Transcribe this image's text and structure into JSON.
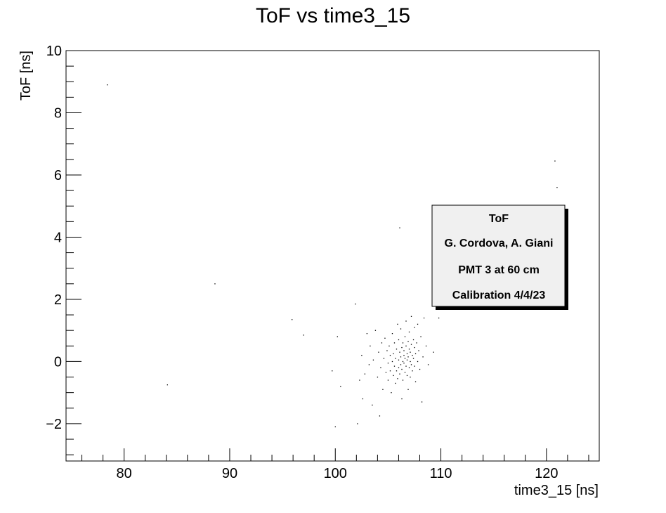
{
  "chart_data": {
    "type": "scatter",
    "title": "ToF vs time3_15",
    "xlabel": "time3_15 [ns]",
    "ylabel": "ToF [ns]",
    "xlim": [
      74.5,
      125
    ],
    "ylim": [
      -3.2,
      10
    ],
    "x_ticks": [
      80,
      90,
      100,
      110,
      120
    ],
    "y_ticks": [
      -2,
      0,
      2,
      4,
      6,
      8,
      10
    ],
    "x_tick_labels": [
      "80",
      "90",
      "100",
      "110",
      "120"
    ],
    "y_tick_labels": [
      "−2",
      "0",
      "2",
      "4",
      "6",
      "8",
      "10"
    ],
    "grid": false,
    "legend_position": "right",
    "legend": {
      "lines": [
        "ToF",
        "G. Cordova, A. Giani",
        "PMT 3 at 60 cm",
        "Calibration 4/4/23"
      ]
    },
    "marker_color": "#000000",
    "points": [
      [
        78.4,
        8.9
      ],
      [
        84.1,
        -0.75
      ],
      [
        88.6,
        2.5
      ],
      [
        95.9,
        1.35
      ],
      [
        97.0,
        0.85
      ],
      [
        99.7,
        -0.3
      ],
      [
        100.0,
        -2.1
      ],
      [
        100.2,
        0.8
      ],
      [
        100.5,
        -0.8
      ],
      [
        101.9,
        1.85
      ],
      [
        102.1,
        -2.0
      ],
      [
        102.3,
        -0.6
      ],
      [
        102.5,
        0.2
      ],
      [
        102.6,
        -1.2
      ],
      [
        102.8,
        -0.4
      ],
      [
        103.0,
        0.9
      ],
      [
        103.2,
        -0.1
      ],
      [
        103.3,
        0.5
      ],
      [
        103.5,
        -1.4
      ],
      [
        103.6,
        0.05
      ],
      [
        103.8,
        1.0
      ],
      [
        104.0,
        -0.5
      ],
      [
        104.1,
        0.3
      ],
      [
        104.2,
        -1.75
      ],
      [
        104.3,
        -0.2
      ],
      [
        104.4,
        0.6
      ],
      [
        104.5,
        -0.9
      ],
      [
        104.6,
        0.1
      ],
      [
        104.7,
        0.75
      ],
      [
        104.8,
        -0.35
      ],
      [
        104.9,
        0.35
      ],
      [
        105.0,
        -0.05
      ],
      [
        105.0,
        -0.6
      ],
      [
        105.1,
        0.5
      ],
      [
        105.2,
        -0.3
      ],
      [
        105.2,
        0.2
      ],
      [
        105.3,
        -1.0
      ],
      [
        105.4,
        0.0
      ],
      [
        105.4,
        0.9
      ],
      [
        105.5,
        -0.45
      ],
      [
        105.5,
        0.25
      ],
      [
        105.6,
        -0.15
      ],
      [
        105.6,
        0.6
      ],
      [
        105.7,
        -0.7
      ],
      [
        105.7,
        0.1
      ],
      [
        105.8,
        -0.3
      ],
      [
        105.8,
        0.4
      ],
      [
        105.9,
        1.2
      ],
      [
        105.9,
        -0.55
      ],
      [
        106.0,
        0.05
      ],
      [
        106.0,
        -0.2
      ],
      [
        106.0,
        0.7
      ],
      [
        106.1,
        4.3
      ],
      [
        106.1,
        -0.4
      ],
      [
        106.1,
        0.3
      ],
      [
        106.2,
        -0.1
      ],
      [
        106.2,
        0.15
      ],
      [
        106.2,
        1.05
      ],
      [
        106.3,
        -1.2
      ],
      [
        106.3,
        0.45
      ],
      [
        106.3,
        -0.25
      ],
      [
        106.4,
        0.0
      ],
      [
        106.4,
        0.6
      ],
      [
        106.4,
        -0.6
      ],
      [
        106.5,
        0.2
      ],
      [
        106.5,
        -0.05
      ],
      [
        106.5,
        0.35
      ],
      [
        106.6,
        -0.35
      ],
      [
        106.6,
        0.8
      ],
      [
        106.6,
        0.1
      ],
      [
        106.7,
        -0.15
      ],
      [
        106.7,
        0.5
      ],
      [
        106.7,
        1.3
      ],
      [
        106.8,
        0.05
      ],
      [
        106.8,
        -0.45
      ],
      [
        106.8,
        0.25
      ],
      [
        106.9,
        -0.9
      ],
      [
        106.9,
        0.65
      ],
      [
        106.9,
        0.15
      ],
      [
        107.0,
        -0.2
      ],
      [
        107.0,
        0.4
      ],
      [
        107.0,
        0.95
      ],
      [
        107.1,
        0.0
      ],
      [
        107.1,
        -0.5
      ],
      [
        107.1,
        0.3
      ],
      [
        107.2,
        0.55
      ],
      [
        107.2,
        -0.1
      ],
      [
        107.2,
        1.45
      ],
      [
        107.3,
        0.2
      ],
      [
        107.3,
        -0.3
      ],
      [
        107.4,
        0.7
      ],
      [
        107.4,
        0.1
      ],
      [
        107.5,
        -0.15
      ],
      [
        107.5,
        0.45
      ],
      [
        107.5,
        1.1
      ],
      [
        107.6,
        0.25
      ],
      [
        107.6,
        -0.65
      ],
      [
        107.7,
        0.6
      ],
      [
        107.8,
        0.0
      ],
      [
        107.8,
        1.2
      ],
      [
        107.9,
        0.35
      ],
      [
        108.0,
        -0.25
      ],
      [
        108.1,
        0.8
      ],
      [
        108.2,
        -1.3
      ],
      [
        108.3,
        0.15
      ],
      [
        108.4,
        1.4
      ],
      [
        108.6,
        0.5
      ],
      [
        108.8,
        -0.1
      ],
      [
        109.3,
        0.3
      ],
      [
        109.8,
        1.4
      ],
      [
        120.8,
        6.45
      ],
      [
        121.0,
        5.6
      ]
    ]
  }
}
